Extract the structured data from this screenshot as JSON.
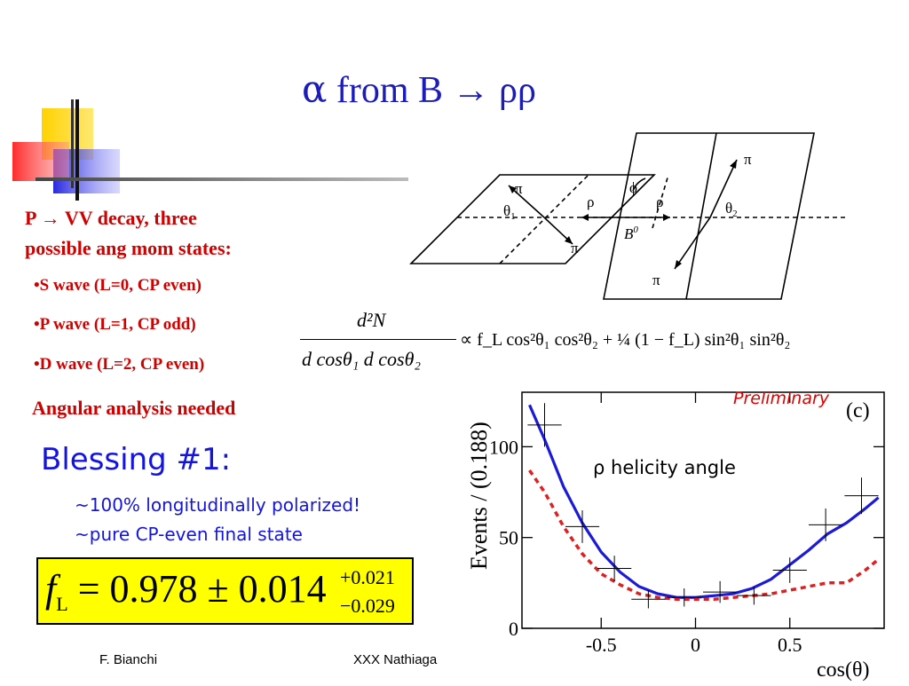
{
  "slide": {
    "title_symbol": "α",
    "title_text": " from B → ρρ",
    "intro_line1": "P → VV decay, three",
    "intro_line2": "possible ang mom states:",
    "bullets": [
      "•S wave (L=0, CP even)",
      "•P wave (L=1, CP odd)",
      "•D wave (L=2, CP even)"
    ],
    "angular_note": "Angular analysis needed",
    "blessing": "Blessing #1:",
    "blessing_line1": "~100% longitudinally polarized!",
    "blessing_line2": "~pure CP-even final state",
    "result": {
      "lhs": "f",
      "lhs_sub": "L",
      "equals": " = 0.978 ± 0.014",
      "sup": "+0.021",
      "sub": "−0.029"
    },
    "footer_author": "F. Bianchi",
    "footer_conf": "XXX Nathiaga",
    "colors": {
      "title": "#1c1cb8",
      "red_text": "#d00000",
      "blue_text": "#1414e0",
      "result_box": "#ffff00"
    }
  },
  "diagram": {
    "labels": {
      "pi": "π",
      "rho": "ρ",
      "theta1": "θ",
      "theta1_sub": "1",
      "theta2": "θ",
      "theta2_sub": "2",
      "phi": "ϕ",
      "b0": "B",
      "b0_sup": "0"
    }
  },
  "equation": {
    "num": "d²N",
    "den": "d cosθ₁ d cosθ₂",
    "rhs": "∝  f_L cos²θ₁ cos²θ₂ + ¼ (1 − f_L) sin²θ₁ sin²θ₂"
  },
  "chart_data": {
    "type": "line",
    "xlabel": "cos(θ)",
    "ylabel": "Events / (0.188)",
    "panel_label": "(c)",
    "preliminary": "Preliminary",
    "annotation": "ρ helicity angle",
    "xlim": [
      -0.92,
      1.0
    ],
    "ylim": [
      0,
      130
    ],
    "x_ticks": [
      "-0.5",
      "0",
      "0.5"
    ],
    "x_tick_values": [
      -0.5,
      0,
      0.5
    ],
    "y_ticks": [
      "0",
      "50",
      "100"
    ],
    "y_tick_values": [
      0,
      50,
      100
    ],
    "data_points": [
      {
        "x": -0.8,
        "y": 112,
        "xerr": 0.09,
        "yerr": 12
      },
      {
        "x": -0.6,
        "y": 56,
        "xerr": 0.09,
        "yerr": 9
      },
      {
        "x": -0.43,
        "y": 33,
        "xerr": 0.09,
        "yerr": 7
      },
      {
        "x": -0.25,
        "y": 16,
        "xerr": 0.09,
        "yerr": 5
      },
      {
        "x": -0.06,
        "y": 17,
        "xerr": 0.09,
        "yerr": 5
      },
      {
        "x": 0.13,
        "y": 20,
        "xerr": 0.09,
        "yerr": 6
      },
      {
        "x": 0.31,
        "y": 18,
        "xerr": 0.09,
        "yerr": 5
      },
      {
        "x": 0.5,
        "y": 32,
        "xerr": 0.09,
        "yerr": 7
      },
      {
        "x": 0.69,
        "y": 57,
        "xerr": 0.09,
        "yerr": 9
      },
      {
        "x": 0.88,
        "y": 73,
        "xerr": 0.09,
        "yerr": 10
      }
    ],
    "series": [
      {
        "color": "#1a1ad8",
        "style": "solid",
        "x": [
          -0.88,
          -0.8,
          -0.7,
          -0.6,
          -0.5,
          -0.4,
          -0.3,
          -0.2,
          -0.1,
          0.0,
          0.1,
          0.2,
          0.3,
          0.4,
          0.5,
          0.6,
          0.7,
          0.8,
          0.9,
          0.97
        ],
        "y": [
          123,
          104,
          78,
          58,
          42,
          31,
          23,
          19,
          17,
          17,
          18,
          19,
          22,
          27,
          35,
          43,
          52,
          58,
          66,
          72
        ]
      },
      {
        "color": "#e02020",
        "style": "dashed",
        "x": [
          -0.88,
          -0.8,
          -0.7,
          -0.6,
          -0.5,
          -0.4,
          -0.3,
          -0.2,
          -0.1,
          0.0,
          0.1,
          0.2,
          0.3,
          0.4,
          0.5,
          0.6,
          0.7,
          0.8,
          0.9,
          0.97
        ],
        "y": [
          87,
          75,
          56,
          41,
          30,
          24,
          19,
          17,
          16,
          16,
          16,
          17,
          18,
          19,
          21,
          23,
          25,
          25,
          32,
          38
        ]
      }
    ]
  }
}
